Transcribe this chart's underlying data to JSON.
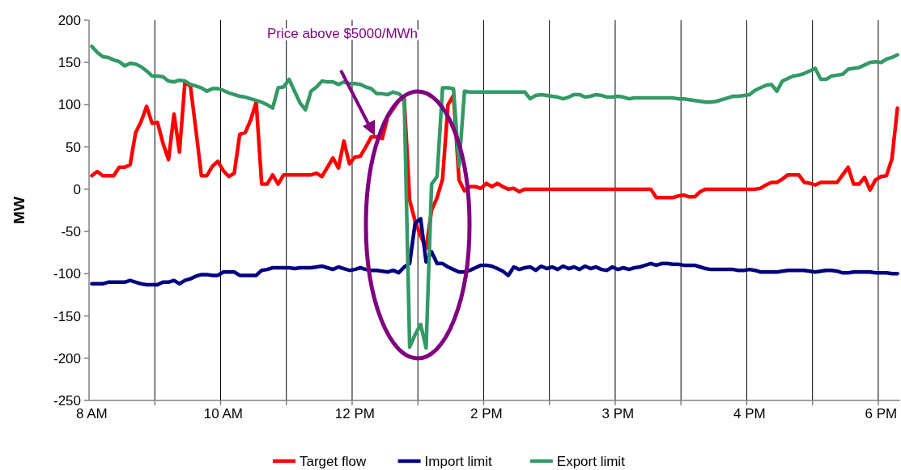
{
  "chart_data": {
    "type": "line",
    "ylabel": "MW",
    "annotations": [
      "Price above $5000/MWh"
    ],
    "categories": [
      "8 AM",
      null,
      null,
      null,
      null,
      null,
      null,
      null,
      null,
      null,
      null,
      null,
      null,
      null,
      null,
      null,
      null,
      null,
      null,
      null,
      null,
      null,
      null,
      null,
      "10 AM",
      null,
      null,
      null,
      null,
      null,
      null,
      null,
      null,
      null,
      null,
      null,
      null,
      null,
      null,
      null,
      null,
      null,
      null,
      null,
      null,
      null,
      null,
      null,
      "12 PM",
      null,
      null,
      null,
      null,
      null,
      null,
      null,
      null,
      null,
      null,
      null,
      null,
      null,
      null,
      null,
      null,
      null,
      null,
      null,
      null,
      null,
      null,
      null,
      "2 PM",
      null,
      null,
      null,
      null,
      null,
      null,
      null,
      null,
      null,
      null,
      null,
      null,
      null,
      null,
      null,
      null,
      null,
      null,
      null,
      null,
      null,
      null,
      null,
      "3 PM",
      null,
      null,
      null,
      null,
      null,
      null,
      null,
      null,
      null,
      null,
      null,
      null,
      null,
      null,
      null,
      null,
      null,
      null,
      null,
      null,
      null,
      null,
      null,
      "4 PM",
      null,
      null,
      null,
      null,
      null,
      null,
      null,
      null,
      null,
      null,
      null,
      null,
      null,
      null,
      null,
      null,
      null,
      null,
      null,
      null,
      null,
      null,
      null,
      "6 PM",
      null,
      null,
      null
    ],
    "series": [
      {
        "name": "Target flow",
        "color": "#ff0000",
        "values": [
          16,
          21,
          16,
          16,
          16,
          26,
          26,
          29,
          67,
          80,
          98,
          78,
          79,
          54,
          35,
          89,
          44,
          127,
          122,
          70,
          16,
          16,
          27,
          33,
          22,
          15,
          19,
          65,
          67,
          82,
          103,
          6,
          6,
          17,
          6,
          17,
          17,
          17,
          17,
          17,
          17,
          19,
          15,
          26,
          37,
          25,
          57,
          30,
          38,
          39,
          50,
          62,
          62,
          60,
          86,
          95,
          105,
          108,
          -13,
          -38,
          -55,
          -70,
          -25,
          -10,
          12,
          100,
          111,
          11,
          -2,
          3,
          3,
          1,
          7,
          3,
          7,
          3,
          0,
          1,
          -3,
          0,
          0,
          0,
          0,
          0,
          0,
          0,
          0,
          0,
          0,
          0,
          0,
          0,
          0,
          0,
          0,
          0,
          0,
          0,
          0,
          0,
          0,
          0,
          0,
          -10,
          -10,
          -10,
          -10,
          -8,
          -7,
          -9,
          -9,
          -3,
          0,
          0,
          0,
          0,
          0,
          0,
          0,
          0,
          0,
          0,
          1,
          5,
          8,
          8,
          12,
          17,
          17,
          17,
          8,
          7,
          5,
          8,
          8,
          8,
          8,
          17,
          26,
          6,
          6,
          14,
          -1,
          11,
          15,
          16,
          36,
          96
        ]
      },
      {
        "name": "Import limit",
        "color": "#000080",
        "values": [
          -112,
          -112,
          -112,
          -110,
          -110,
          -110,
          -110,
          -108,
          -110,
          -112,
          -113,
          -113,
          -113,
          -110,
          -110,
          -108,
          -112,
          -108,
          -106,
          -103,
          -101,
          -101,
          -102,
          -102,
          -98,
          -98,
          -98,
          -102,
          -102,
          -102,
          -102,
          -96,
          -95,
          -93,
          -93,
          -93,
          -93,
          -94,
          -93,
          -93,
          -93,
          -92,
          -91,
          -93,
          -95,
          -92,
          -94,
          -96,
          -95,
          -93,
          -95,
          -96,
          -96,
          -97,
          -98,
          -96,
          -99,
          -92,
          -88,
          -40,
          -35,
          -86,
          -74,
          -88,
          -88,
          -92,
          -95,
          -98,
          -98,
          -96,
          -93,
          -90,
          -90,
          -91,
          -94,
          -97,
          -102,
          -92,
          -95,
          -93,
          -92,
          -96,
          -91,
          -94,
          -92,
          -95,
          -91,
          -94,
          -92,
          -95,
          -91,
          -94,
          -92,
          -95,
          -96,
          -92,
          -95,
          -93,
          -95,
          -93,
          -92,
          -90,
          -88,
          -90,
          -88,
          -88,
          -89,
          -89,
          -90,
          -90,
          -90,
          -92,
          -94,
          -95,
          -95,
          -95,
          -95,
          -95,
          -96,
          -96,
          -95,
          -96,
          -98,
          -98,
          -98,
          -98,
          -97,
          -96,
          -96,
          -96,
          -96,
          -97,
          -98,
          -97,
          -96,
          -96,
          -97,
          -99,
          -99,
          -98,
          -98,
          -98,
          -98,
          -99,
          -99,
          -99,
          -100,
          -100
        ]
      },
      {
        "name": "Export limit",
        "color": "#339966",
        "values": [
          169,
          162,
          157,
          156,
          153,
          151,
          146,
          149,
          148,
          145,
          140,
          134,
          134,
          133,
          128,
          127,
          129,
          128,
          124,
          122,
          120,
          116,
          119,
          119,
          117,
          114,
          112,
          110,
          109,
          107,
          105,
          103,
          100,
          96,
          120,
          121,
          130,
          116,
          102,
          94,
          116,
          121,
          128,
          127,
          127,
          124,
          127,
          125,
          125,
          124,
          121,
          119,
          113,
          113,
          112,
          115,
          113,
          108,
          -187,
          -172,
          -160,
          -188,
          6,
          15,
          120,
          120,
          119,
          27,
          116,
          115,
          115,
          115,
          115,
          115,
          115,
          115,
          115,
          115,
          115,
          115,
          107,
          111,
          112,
          111,
          110,
          109,
          107,
          109,
          112,
          112,
          109,
          110,
          112,
          111,
          109,
          109,
          110,
          109,
          107,
          108,
          108,
          108,
          108,
          108,
          108,
          108,
          108,
          107,
          107,
          106,
          105,
          104,
          103,
          103,
          104,
          106,
          108,
          110,
          110,
          111,
          112,
          117,
          120,
          123,
          124,
          116,
          128,
          131,
          134,
          135,
          137,
          140,
          143,
          130,
          130,
          134,
          135,
          136,
          142,
          143,
          144,
          147,
          150,
          151,
          150,
          154,
          156,
          159
        ]
      }
    ],
    "ylim": [
      -250,
      200
    ],
    "yticks": [
      -250,
      -200,
      -150,
      -100,
      -50,
      0,
      50,
      100,
      150,
      200
    ],
    "grid": "x",
    "legend": "bottom"
  }
}
